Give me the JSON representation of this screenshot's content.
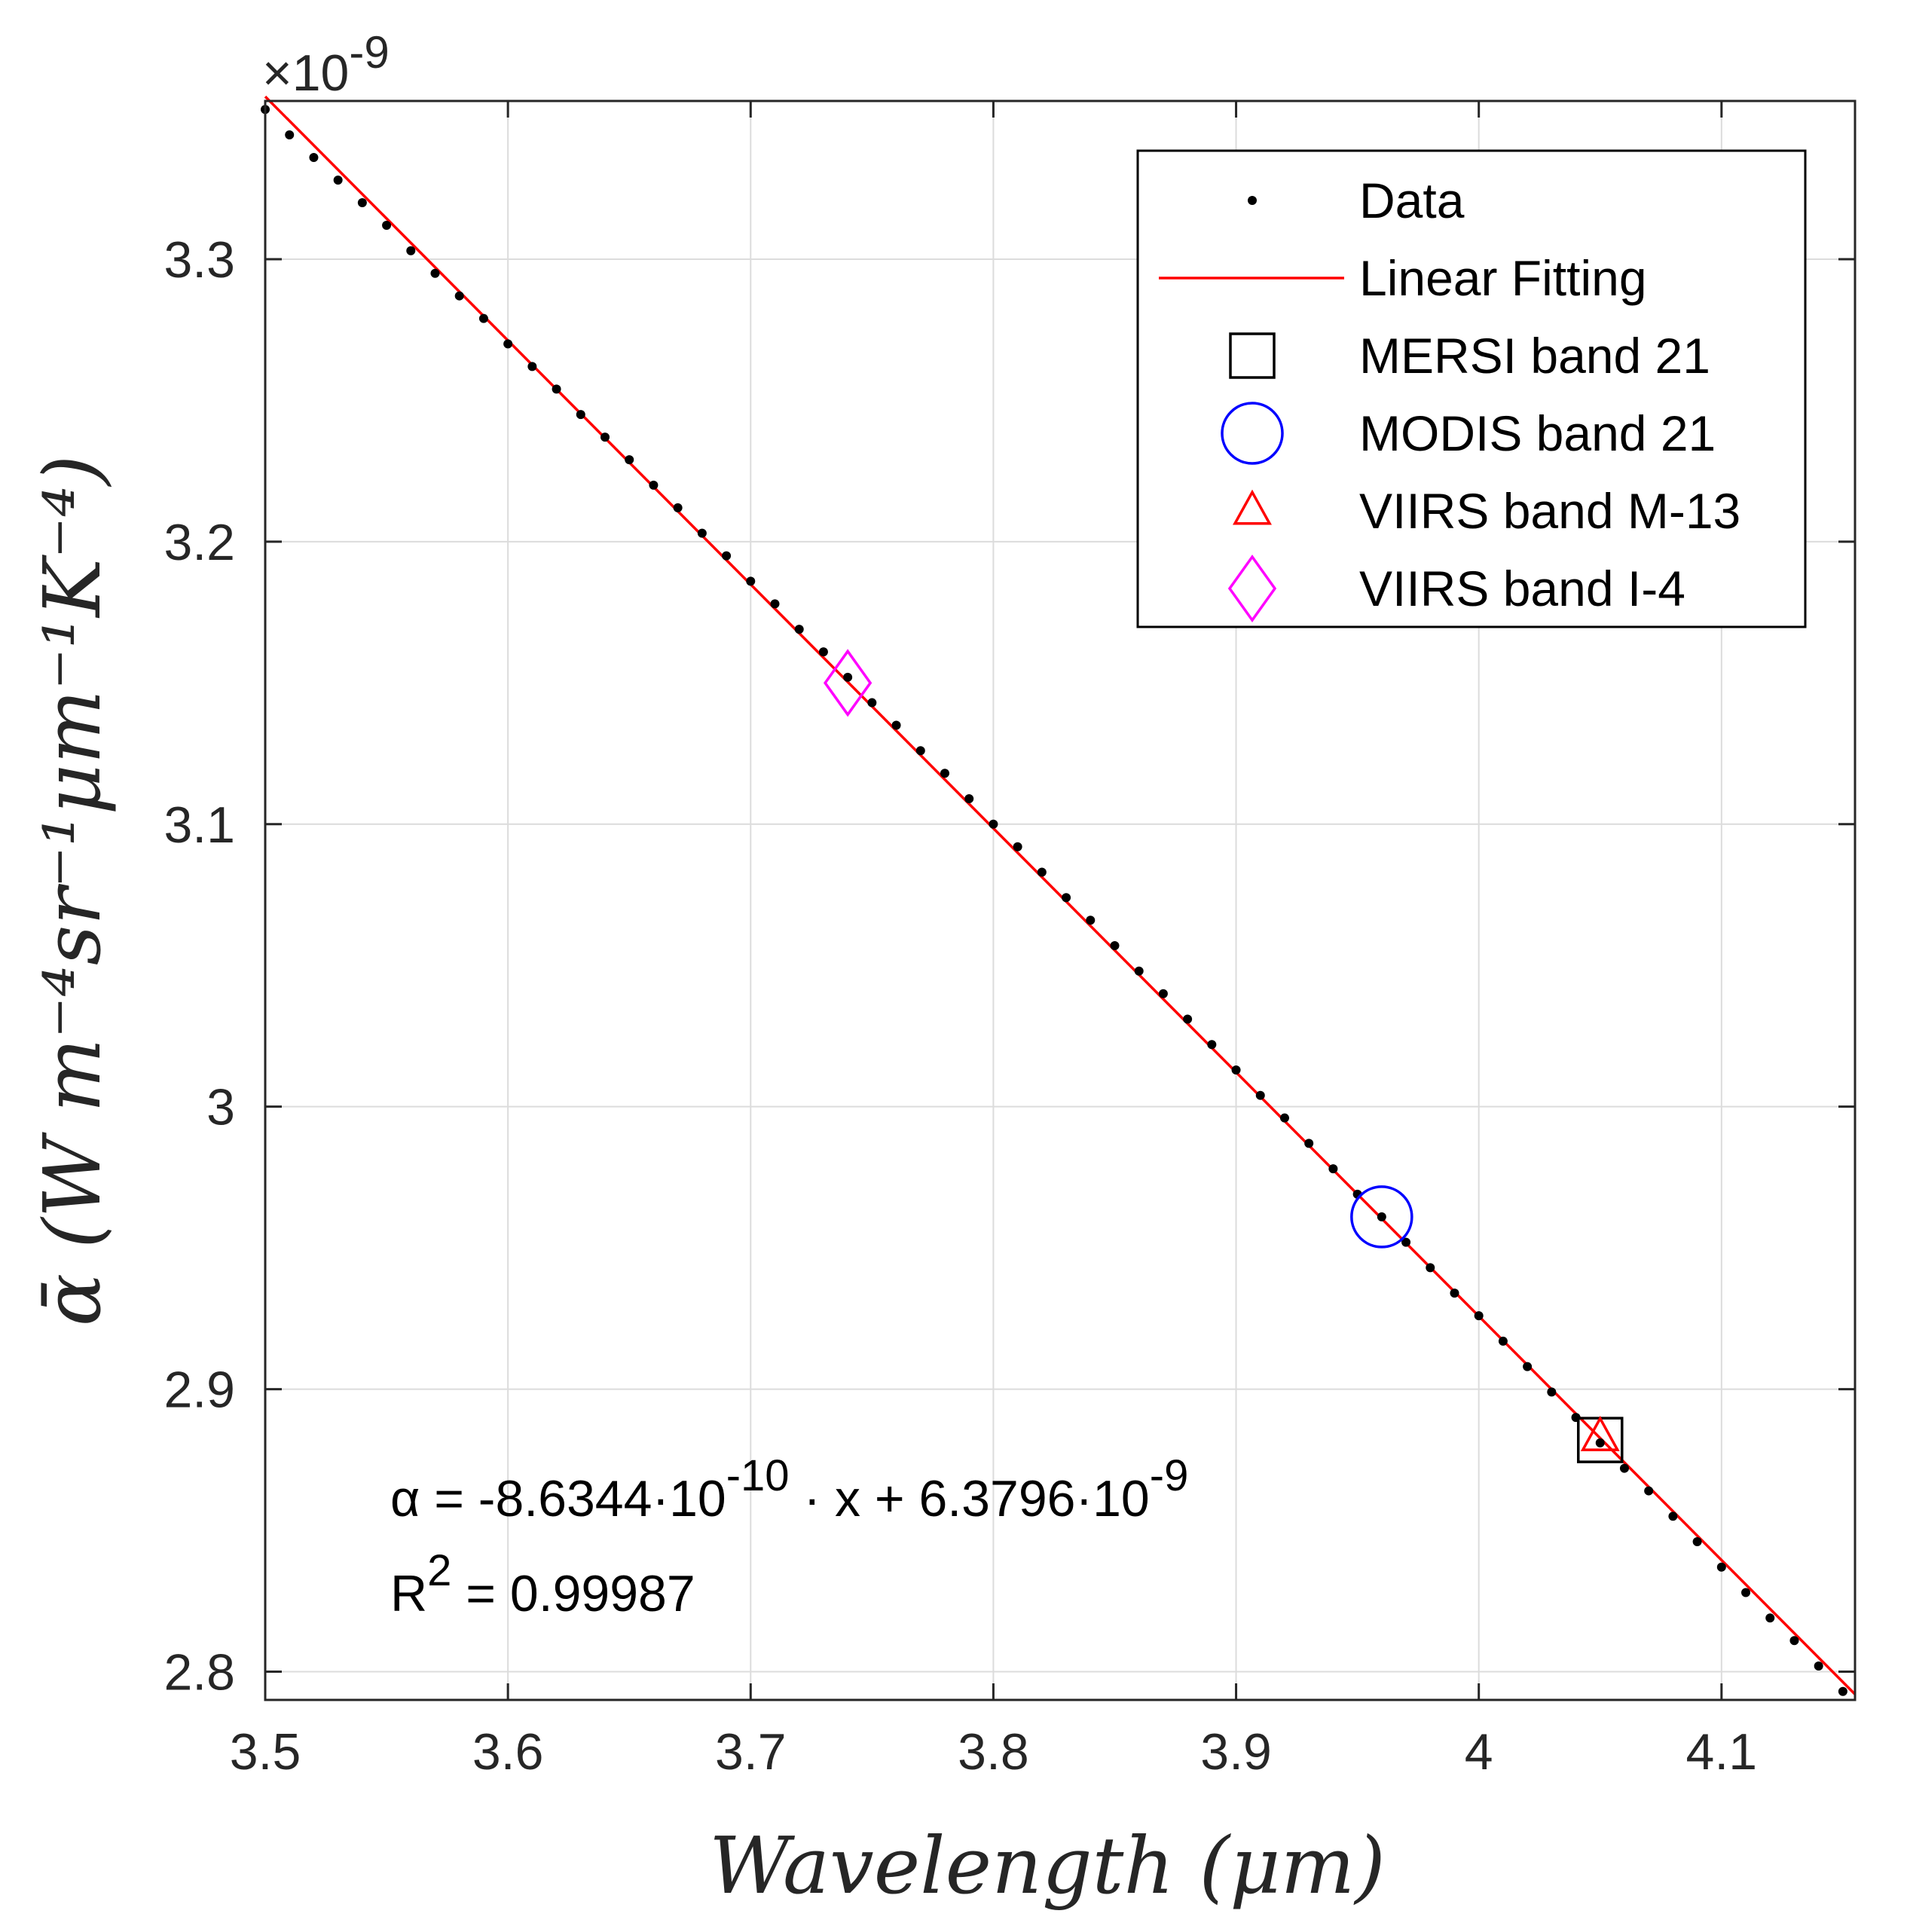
{
  "chart_data": {
    "type": "scatter",
    "x": [
      3.5,
      3.51,
      3.52,
      3.53,
      3.54,
      3.55,
      3.56,
      3.57,
      3.58,
      3.59,
      3.6,
      3.61,
      3.62,
      3.63,
      3.64,
      3.65,
      3.66,
      3.67,
      3.68,
      3.69,
      3.7,
      3.71,
      3.72,
      3.73,
      3.74,
      3.75,
      3.76,
      3.77,
      3.78,
      3.79,
      3.8,
      3.81,
      3.82,
      3.83,
      3.84,
      3.85,
      3.86,
      3.87,
      3.88,
      3.89,
      3.9,
      3.91,
      3.92,
      3.93,
      3.94,
      3.95,
      3.96,
      3.97,
      3.98,
      3.99,
      4.0,
      4.01,
      4.02,
      4.03,
      4.04,
      4.05,
      4.06,
      4.07,
      4.08,
      4.09,
      4.1,
      4.11,
      4.12,
      4.13,
      4.14,
      4.15
    ],
    "series": [
      {
        "name": "Data",
        "kind": "points",
        "color": "#000000",
        "values": [
          3.353,
          3.344,
          3.336,
          3.328,
          3.32,
          3.312,
          3.303,
          3.295,
          3.287,
          3.279,
          3.27,
          3.262,
          3.254,
          3.245,
          3.237,
          3.229,
          3.22,
          3.212,
          3.203,
          3.195,
          3.186,
          3.178,
          3.169,
          3.161,
          3.152,
          3.143,
          3.135,
          3.126,
          3.118,
          3.109,
          3.1,
          3.092,
          3.083,
          3.074,
          3.066,
          3.057,
          3.048,
          3.04,
          3.031,
          3.022,
          3.013,
          3.004,
          2.996,
          2.987,
          2.978,
          2.969,
          2.961,
          2.952,
          2.943,
          2.934,
          2.926,
          2.917,
          2.908,
          2.899,
          2.89,
          2.881,
          2.872,
          2.864,
          2.855,
          2.846,
          2.837,
          2.828,
          2.819,
          2.811,
          2.802,
          2.793
        ]
      },
      {
        "name": "Linear Fitting",
        "kind": "line",
        "color": "#ff0000",
        "slope": -0.86344,
        "intercept": 6.3796
      },
      {
        "name": "MERSI band 21",
        "kind": "marker",
        "marker": "square",
        "color": "#000000",
        "x": 4.05,
        "y": 2.882
      },
      {
        "name": "MODIS band 21",
        "kind": "marker",
        "marker": "circle",
        "color": "#0000ff",
        "x": 3.96,
        "y": 2.961
      },
      {
        "name": "VIIRS band M-13",
        "kind": "marker",
        "marker": "triangle",
        "color": "#ff0000",
        "x": 4.05,
        "y": 2.883
      },
      {
        "name": "VIIRS band I-4",
        "kind": "marker",
        "marker": "diamond",
        "color": "#ff00ff",
        "x": 3.74,
        "y": 3.15
      }
    ],
    "xlim": [
      3.5,
      4.155
    ],
    "ylim": [
      2.79,
      3.356
    ],
    "xticks": [
      3.5,
      3.6,
      3.7,
      3.8,
      3.9,
      4.0,
      4.1
    ],
    "xtick_labels": [
      "3.5",
      "3.6",
      "3.7",
      "3.8",
      "3.9",
      "4",
      "4.1"
    ],
    "yticks": [
      2.8,
      2.9,
      3.0,
      3.1,
      3.2,
      3.3
    ],
    "ytick_labels": [
      "2.8",
      "2.9",
      "3",
      "3.1",
      "3.2",
      "3.3"
    ],
    "y_exponent": "×10",
    "y_exponent_power": "-9",
    "xlabel": "Wavelength (μm)",
    "ylabel": "ᾱ (W m⁻⁴sr⁻¹μm⁻¹K⁻⁴)",
    "grid": true,
    "legend_position": "top-right",
    "annotations": {
      "equation": {
        "lhs": "α = -8.6344·10",
        "exp1": "-10",
        "mid": " · x + 6.3796·10",
        "exp2": "-9"
      },
      "r2": {
        "prefix": "R",
        "sup": "2",
        "suffix": " = 0.99987"
      }
    }
  }
}
